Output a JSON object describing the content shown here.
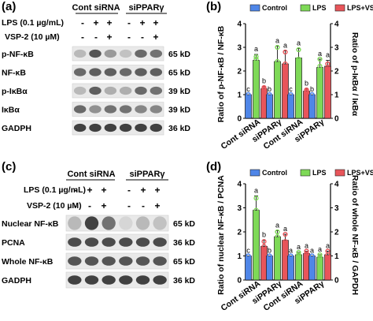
{
  "panels": {
    "a": {
      "label": "(a)",
      "group_headers": [
        "Cont siRNA",
        "siPPARγ"
      ],
      "treatments": [
        {
          "label": "LPS (0.1 µg/mL)",
          "marks": [
            "-",
            "+",
            "+",
            "-",
            "+",
            "+"
          ]
        },
        {
          "label": "VSP-2 (10 µM)",
          "marks": [
            "-",
            "-",
            "+",
            "-",
            "-",
            "+"
          ]
        }
      ],
      "blots": [
        {
          "name": "p-NF-κB",
          "size": "65 kD"
        },
        {
          "name": "NF-κB",
          "size": "65 kD"
        },
        {
          "name": "p-IκBα",
          "size": "39 kD"
        },
        {
          "name": "IκBα",
          "size": "39 kD"
        },
        {
          "name": "GADPH",
          "size": "36 kD"
        }
      ]
    },
    "c": {
      "label": "(c)",
      "group_headers": [
        "Cont siRNA",
        "siPPARγ"
      ],
      "treatments": [
        {
          "label": "LPS (0.1 µg/mL)",
          "marks": [
            "-",
            "+",
            "+",
            "-",
            "+",
            "+"
          ]
        },
        {
          "label": "VSP-2 (10 µM)",
          "marks": [
            "-",
            "-",
            "+",
            "-",
            "-",
            "+"
          ]
        }
      ],
      "blots": [
        {
          "name": "Nuclear NF-κB",
          "size": "65 kD"
        },
        {
          "name": "PCNA",
          "size": "36 kD"
        },
        {
          "name": "Whole NF-κB",
          "size": "65 kD"
        },
        {
          "name": "GADPH",
          "size": "36 kD"
        }
      ]
    }
  },
  "colors": {
    "Control": "#4f86e8",
    "LPS": "#7ed957",
    "LPS+VSP-2": "#e8555a"
  },
  "chart_data": [
    {
      "type": "bar",
      "panel": "(b)",
      "legend": [
        "Control",
        "LPS",
        "LPS+VSP-2"
      ],
      "categories": [
        "Cont siRNA",
        "siPPARγ",
        "Cont siRNA",
        "siPPARγ"
      ],
      "series": [
        {
          "name": "Control",
          "values": [
            1.0,
            1.0,
            1.0,
            1.0
          ],
          "errors": [
            0.0,
            0.0,
            0.0,
            0.0
          ],
          "letters": [
            "c",
            "b",
            "c",
            "b"
          ]
        },
        {
          "name": "LPS",
          "values": [
            2.45,
            2.4,
            2.55,
            2.15
          ],
          "errors": [
            0.25,
            0.65,
            0.4,
            0.35
          ],
          "letters": [
            "a",
            "a",
            "a",
            "a"
          ]
        },
        {
          "name": "LPS+VSP-2",
          "values": [
            1.25,
            2.3,
            1.15,
            2.2
          ],
          "errors": [
            0.1,
            0.55,
            0.1,
            0.25
          ],
          "letters": [
            "b",
            "a",
            "b",
            "a"
          ]
        }
      ],
      "points": [
        [
          [
            1.0,
            1.0,
            1.0
          ],
          [
            2.2,
            2.5,
            2.6
          ],
          [
            1.2,
            1.3,
            1.25
          ]
        ],
        [
          [
            1.0,
            1.0,
            1.0
          ],
          [
            1.8,
            2.4,
            3.0
          ],
          [
            1.8,
            2.3,
            2.8
          ]
        ],
        [
          [
            1.0,
            1.0,
            1.0
          ],
          [
            2.2,
            2.5,
            2.9
          ],
          [
            1.1,
            1.2,
            1.15
          ]
        ],
        [
          [
            1.0,
            1.0,
            1.0
          ],
          [
            1.8,
            2.2,
            2.5
          ],
          [
            2.0,
            2.3,
            2.3
          ]
        ]
      ],
      "ylabel_left": "Ratio of p-NF-κB / NF-κB",
      "ylabel_right": "Ratio of p-IκBα / IκBα",
      "ylim": [
        0,
        4
      ],
      "yticks": [
        "0",
        "1",
        "2",
        "3",
        "4"
      ]
    },
    {
      "type": "bar",
      "panel": "(d)",
      "legend": [
        "Control",
        "LPS",
        "LPS+VSP-2"
      ],
      "categories": [
        "Cont siRNA",
        "siPPARγ",
        "Cont siRNA",
        "siPPARγ"
      ],
      "series": [
        {
          "name": "Control",
          "values": [
            1.0,
            1.0,
            1.0,
            1.0
          ],
          "errors": [
            0.0,
            0.0,
            0.0,
            0.0
          ],
          "letters": [
            "c",
            "b",
            "a",
            "a"
          ]
        },
        {
          "name": "LPS",
          "values": [
            2.9,
            1.8,
            1.05,
            0.95
          ],
          "errors": [
            0.6,
            0.25,
            0.1,
            0.1
          ],
          "letters": [
            "a",
            "a",
            "a",
            "a"
          ]
        },
        {
          "name": "LPS+VSP-2",
          "values": [
            1.4,
            1.65,
            1.1,
            1.05
          ],
          "errors": [
            0.25,
            0.25,
            0.1,
            0.15
          ],
          "letters": [
            "b",
            "a",
            "a",
            "a"
          ]
        }
      ],
      "points": [
        [
          [
            1.0,
            1.0,
            1.0
          ],
          [
            2.4,
            2.9,
            3.4
          ],
          [
            1.2,
            1.4,
            1.6
          ]
        ],
        [
          [
            1.0,
            1.0,
            1.0
          ],
          [
            1.6,
            1.8,
            2.0
          ],
          [
            1.5,
            1.6,
            1.9
          ]
        ],
        [
          [
            1.0,
            1.0,
            1.0
          ],
          [
            0.95,
            1.05,
            1.15
          ],
          [
            1.0,
            1.1,
            1.2
          ]
        ],
        [
          [
            1.0,
            1.0,
            1.0
          ],
          [
            0.85,
            0.95,
            1.05
          ],
          [
            0.9,
            1.05,
            1.2
          ]
        ]
      ],
      "ylabel_left": "Ratio of nuclear NF-κB / PCNA",
      "ylabel_right": "Ratio of whole NF-κB / GAPDH",
      "ylim": [
        0,
        4
      ],
      "yticks": [
        "0",
        "1",
        "2",
        "3",
        "4"
      ]
    }
  ]
}
